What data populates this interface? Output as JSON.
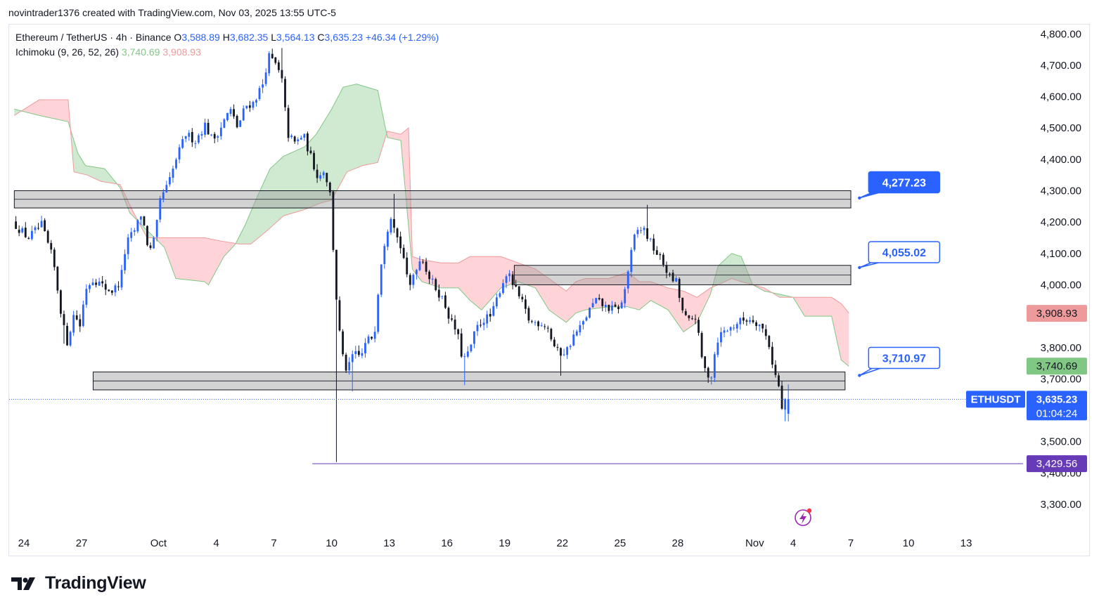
{
  "header": {
    "attribution": "novintrader1376 created with TradingView.com, Nov 03, 2025 13:55 UTC-5"
  },
  "legend": {
    "symbol": "Ethereum / TetherUS · 4h · Binance",
    "open_label": "O",
    "open": "3,588.89",
    "high_label": "H",
    "high": "3,682.35",
    "low_label": "L",
    "low": "3,564.13",
    "close_label": "C",
    "close": "3,635.23",
    "change": "+46.34 (+1.29%)",
    "indicator": "Ichimoku (9, 26, 52, 26)",
    "indicator_v1": "3,740.69",
    "indicator_v2": "3,908.93"
  },
  "brand": {
    "name": "TradingView"
  },
  "colors": {
    "up": "#2962ff",
    "down": "#131722",
    "cloud_bull": "#c8e6c9",
    "cloud_bear": "#ffcdd2",
    "span_a": "#81c784",
    "span_b": "#ef9a9a",
    "callout": "#2962ff",
    "purple": "#673ab7",
    "axis_text": "#131722"
  },
  "chart_data": {
    "type": "candlestick",
    "timeframe": "4h",
    "ylim": [
      3250,
      4825
    ],
    "x_ticks": [
      {
        "label": "24",
        "day": 0
      },
      {
        "label": "27",
        "day": 3
      },
      {
        "label": "Oct",
        "day": 7
      },
      {
        "label": "4",
        "day": 10
      },
      {
        "label": "7",
        "day": 13
      },
      {
        "label": "10",
        "day": 16
      },
      {
        "label": "13",
        "day": 19
      },
      {
        "label": "16",
        "day": 22
      },
      {
        "label": "19",
        "day": 25
      },
      {
        "label": "22",
        "day": 28
      },
      {
        "label": "25",
        "day": 31
      },
      {
        "label": "28",
        "day": 34
      },
      {
        "label": "Nov",
        "day": 38
      },
      {
        "label": "4",
        "day": 40
      },
      {
        "label": "7",
        "day": 43
      },
      {
        "label": "10",
        "day": 46
      },
      {
        "label": "13",
        "day": 49
      }
    ],
    "y_ticks": [
      3300,
      3400,
      3500,
      3600,
      3700,
      3800,
      3900,
      4000,
      4100,
      4200,
      4300,
      4400,
      4500,
      4600,
      4700,
      4800
    ],
    "y_tick_labels": [
      "3,300.00",
      "3,400.00",
      "3,500.00",
      "3,600.00",
      "3,700.00",
      "3,800.00",
      "3,900.00",
      "4,000.00",
      "4,100.00",
      "4,200.00",
      "4,300.00",
      "4,400.00",
      "4,500.00",
      "4,600.00",
      "4,700.00",
      "4,800.00"
    ],
    "price_path": [
      [
        -0.5,
        4200
      ],
      [
        0.3,
        4150
      ],
      [
        1,
        4190
      ],
      [
        1.6,
        4080
      ],
      [
        2,
        3920
      ],
      [
        2.3,
        3810
      ],
      [
        2.7,
        3910
      ],
      [
        3,
        3870
      ],
      [
        3.3,
        3990
      ],
      [
        3.7,
        4020
      ],
      [
        4.3,
        3990
      ],
      [
        4.7,
        3980
      ],
      [
        5.1,
        4010
      ],
      [
        5.4,
        4130
      ],
      [
        5.9,
        4180
      ],
      [
        6.2,
        4230
      ],
      [
        6.6,
        4100
      ],
      [
        6.9,
        4150
      ],
      [
        7.2,
        4280
      ],
      [
        7.6,
        4320
      ],
      [
        8,
        4400
      ],
      [
        8.5,
        4480
      ],
      [
        9,
        4460
      ],
      [
        9.5,
        4510
      ],
      [
        9.9,
        4460
      ],
      [
        10.3,
        4500
      ],
      [
        10.8,
        4560
      ],
      [
        11.2,
        4500
      ],
      [
        11.6,
        4570
      ],
      [
        12,
        4580
      ],
      [
        12.5,
        4640
      ],
      [
        12.8,
        4730
      ],
      [
        13.2,
        4700
      ],
      [
        13.5,
        4650
      ],
      [
        13.8,
        4480
      ],
      [
        14.2,
        4450
      ],
      [
        14.6,
        4480
      ],
      [
        15.1,
        4390
      ],
      [
        15.4,
        4340
      ],
      [
        15.7,
        4370
      ],
      [
        16,
        4290
      ],
      [
        16.3,
        3980
      ],
      [
        16.6,
        3780
      ],
      [
        16.9,
        3720
      ],
      [
        17.2,
        3780
      ],
      [
        17.6,
        3770
      ],
      [
        17.9,
        3820
      ],
      [
        18.3,
        3840
      ],
      [
        18.6,
        4050
      ],
      [
        18.9,
        4160
      ],
      [
        19.2,
        4230
      ],
      [
        19.5,
        4150
      ],
      [
        19.8,
        4100
      ],
      [
        20.1,
        3980
      ],
      [
        20.4,
        4050
      ],
      [
        20.8,
        4090
      ],
      [
        21.1,
        4030
      ],
      [
        21.5,
        3990
      ],
      [
        21.9,
        3950
      ],
      [
        22.3,
        3880
      ],
      [
        22.6,
        3850
      ],
      [
        22.9,
        3760
      ],
      [
        23.2,
        3780
      ],
      [
        23.6,
        3860
      ],
      [
        24,
        3890
      ],
      [
        24.4,
        3900
      ],
      [
        24.8,
        3980
      ],
      [
        25.2,
        4040
      ],
      [
        25.6,
        3990
      ],
      [
        26,
        3940
      ],
      [
        26.4,
        3880
      ],
      [
        26.9,
        3880
      ],
      [
        27.3,
        3870
      ],
      [
        27.6,
        3810
      ],
      [
        27.9,
        3780
      ],
      [
        28.3,
        3790
      ],
      [
        28.7,
        3840
      ],
      [
        29.1,
        3870
      ],
      [
        29.4,
        3910
      ],
      [
        29.8,
        3950
      ],
      [
        30.3,
        3930
      ],
      [
        30.8,
        3920
      ],
      [
        31.2,
        3940
      ],
      [
        31.6,
        4080
      ],
      [
        31.9,
        4170
      ],
      [
        32.3,
        4180
      ],
      [
        32.7,
        4130
      ],
      [
        33.1,
        4090
      ],
      [
        33.4,
        4060
      ],
      [
        33.7,
        4020
      ],
      [
        34,
        4010
      ],
      [
        34.3,
        3920
      ],
      [
        34.6,
        3880
      ],
      [
        35,
        3900
      ],
      [
        35.4,
        3740
      ],
      [
        35.8,
        3700
      ],
      [
        36.1,
        3820
      ],
      [
        36.4,
        3850
      ],
      [
        36.8,
        3860
      ],
      [
        37.2,
        3880
      ],
      [
        37.6,
        3890
      ],
      [
        38,
        3890
      ],
      [
        38.4,
        3870
      ],
      [
        38.8,
        3820
      ],
      [
        39.1,
        3720
      ],
      [
        39.3,
        3690
      ],
      [
        39.5,
        3600
      ],
      [
        39.6,
        3635
      ]
    ],
    "wick_extremes": [
      {
        "day": 2.05,
        "low": 3812
      },
      {
        "day": 13.4,
        "high": 4755
      },
      {
        "day": 16.2,
        "low": 3435
      },
      {
        "day": 17.0,
        "low": 3660
      },
      {
        "day": 19.2,
        "high": 4290
      },
      {
        "day": 22.9,
        "low": 3680
      },
      {
        "day": 27.9,
        "low": 3710
      },
      {
        "day": 32.3,
        "high": 4255
      },
      {
        "day": 35.7,
        "low": 3682
      },
      {
        "day": 39.55,
        "low": 3565
      }
    ],
    "last_candle": {
      "open": 3588.89,
      "high": 3682.35,
      "low": 3564.13,
      "close": 3635.23
    },
    "ichimoku": {
      "params": [
        9,
        26,
        52,
        26
      ],
      "span_a": [
        [
          -0.5,
          4560
        ],
        [
          0.8,
          4540
        ],
        [
          2.3,
          4520
        ],
        [
          2.8,
          4420
        ],
        [
          3.2,
          4380
        ],
        [
          4.2,
          4370
        ],
        [
          5,
          4310
        ],
        [
          5.5,
          4230
        ],
        [
          6.3,
          4180
        ],
        [
          7.3,
          4120
        ],
        [
          7.9,
          4020
        ],
        [
          9.4,
          4010
        ],
        [
          9.6,
          4000
        ],
        [
          10.4,
          4090
        ],
        [
          11,
          4130
        ],
        [
          11.5,
          4190
        ],
        [
          12.2,
          4290
        ],
        [
          12.8,
          4370
        ],
        [
          13.5,
          4410
        ],
        [
          14.6,
          4440
        ],
        [
          15.2,
          4480
        ],
        [
          16,
          4560
        ],
        [
          16.6,
          4630
        ],
        [
          17.3,
          4640
        ],
        [
          18.4,
          4620
        ],
        [
          18.9,
          4470
        ],
        [
          19.6,
          4460
        ],
        [
          20.2,
          4050
        ],
        [
          20.7,
          4010
        ],
        [
          21.7,
          3990
        ],
        [
          22.6,
          3990
        ],
        [
          23.2,
          3950
        ],
        [
          23.8,
          3920
        ],
        [
          24.8,
          3990
        ],
        [
          25.7,
          4010
        ],
        [
          26.6,
          3990
        ],
        [
          27.3,
          3920
        ],
        [
          28.2,
          3880
        ],
        [
          28.7,
          3910
        ],
        [
          29.2,
          3920
        ],
        [
          30.4,
          3930
        ],
        [
          31.4,
          3930
        ],
        [
          32,
          3920
        ],
        [
          32.6,
          3950
        ],
        [
          33.5,
          3920
        ],
        [
          34.3,
          3850
        ],
        [
          35,
          3880
        ],
        [
          35.7,
          3970
        ],
        [
          36.1,
          4060
        ],
        [
          36.8,
          4100
        ],
        [
          37.3,
          4090
        ],
        [
          37.9,
          4000
        ],
        [
          38.5,
          3980
        ],
        [
          39.3,
          3970
        ],
        [
          40.0,
          3960
        ],
        [
          40.6,
          3900
        ],
        [
          41.4,
          3900
        ],
        [
          42.0,
          3900
        ],
        [
          42.5,
          3760
        ],
        [
          42.9,
          3740
        ]
      ],
      "span_b": [
        [
          -0.5,
          4540
        ],
        [
          0.8,
          4590
        ],
        [
          2.3,
          4590
        ],
        [
          2.6,
          4360
        ],
        [
          3.3,
          4350
        ],
        [
          4,
          4330
        ],
        [
          5,
          4320
        ],
        [
          5.7,
          4230
        ],
        [
          6.4,
          4150
        ],
        [
          7.3,
          4150
        ],
        [
          7.9,
          4150
        ],
        [
          9.4,
          4150
        ],
        [
          10.2,
          4140
        ],
        [
          11.2,
          4130
        ],
        [
          11.8,
          4130
        ],
        [
          12.6,
          4170
        ],
        [
          13.5,
          4220
        ],
        [
          14.6,
          4240
        ],
        [
          15.4,
          4260
        ],
        [
          16,
          4270
        ],
        [
          16.8,
          4360
        ],
        [
          17.6,
          4380
        ],
        [
          18.4,
          4390
        ],
        [
          18.9,
          4490
        ],
        [
          19.6,
          4480
        ],
        [
          20.0,
          4500
        ],
        [
          20.2,
          4090
        ],
        [
          20.7,
          4080
        ],
        [
          21.7,
          4070
        ],
        [
          22.6,
          4070
        ],
        [
          23.2,
          4090
        ],
        [
          23.8,
          4090
        ],
        [
          24.8,
          4090
        ],
        [
          25.7,
          4070
        ],
        [
          26.6,
          4050
        ],
        [
          27.3,
          4020
        ],
        [
          28.2,
          3980
        ],
        [
          28.7,
          4010
        ],
        [
          29.2,
          4020
        ],
        [
          30.4,
          4020
        ],
        [
          31.4,
          4040
        ],
        [
          32,
          4010
        ],
        [
          32.6,
          4010
        ],
        [
          33.5,
          3990
        ],
        [
          34.3,
          3980
        ],
        [
          35,
          3960
        ],
        [
          35.7,
          3990
        ],
        [
          36.1,
          4000
        ],
        [
          36.8,
          4020
        ],
        [
          37.3,
          4010
        ],
        [
          37.9,
          4000
        ],
        [
          38.5,
          3990
        ],
        [
          39.3,
          3960
        ],
        [
          40.0,
          3960
        ],
        [
          40.6,
          3960
        ],
        [
          41.4,
          3960
        ],
        [
          42.0,
          3960
        ],
        [
          42.5,
          3940
        ],
        [
          42.9,
          3910
        ]
      ]
    },
    "zones": [
      {
        "from_day": -0.5,
        "to_day": 43.0,
        "low": 4245,
        "high": 4300
      },
      {
        "from_day": 25.5,
        "to_day": 43.0,
        "low": 4000,
        "high": 4062
      },
      {
        "from_day": 3.6,
        "to_day": 42.7,
        "low": 3665,
        "high": 3722
      }
    ],
    "support_line": {
      "from_day": 15.0,
      "value": 3429.56
    },
    "callouts": [
      {
        "label": "4,277.23",
        "day": 43.45,
        "value": 4277,
        "box_value": 4327,
        "filled": true
      },
      {
        "label": "4,055.02",
        "day": 43.45,
        "value": 4055,
        "box_value": 4104,
        "filled": false
      },
      {
        "label": "3,710.97",
        "day": 43.45,
        "value": 3711,
        "box_value": 3767,
        "filled": false
      }
    ],
    "price_labels": [
      {
        "text": "3,908.93",
        "value": 3908.93,
        "bg": "#ef9a9a",
        "fg": "#131722"
      },
      {
        "text": "3,740.69",
        "value": 3740.69,
        "bg": "#81c784",
        "fg": "#131722"
      },
      {
        "text": "3,429.56",
        "value": 3429.56,
        "bg": "#673ab7",
        "fg": "#ffffff"
      }
    ],
    "current_price": {
      "value": 3635.23,
      "text": "3,635.23",
      "countdown": "01:04:24",
      "symbol": "ETHUSDT"
    }
  }
}
